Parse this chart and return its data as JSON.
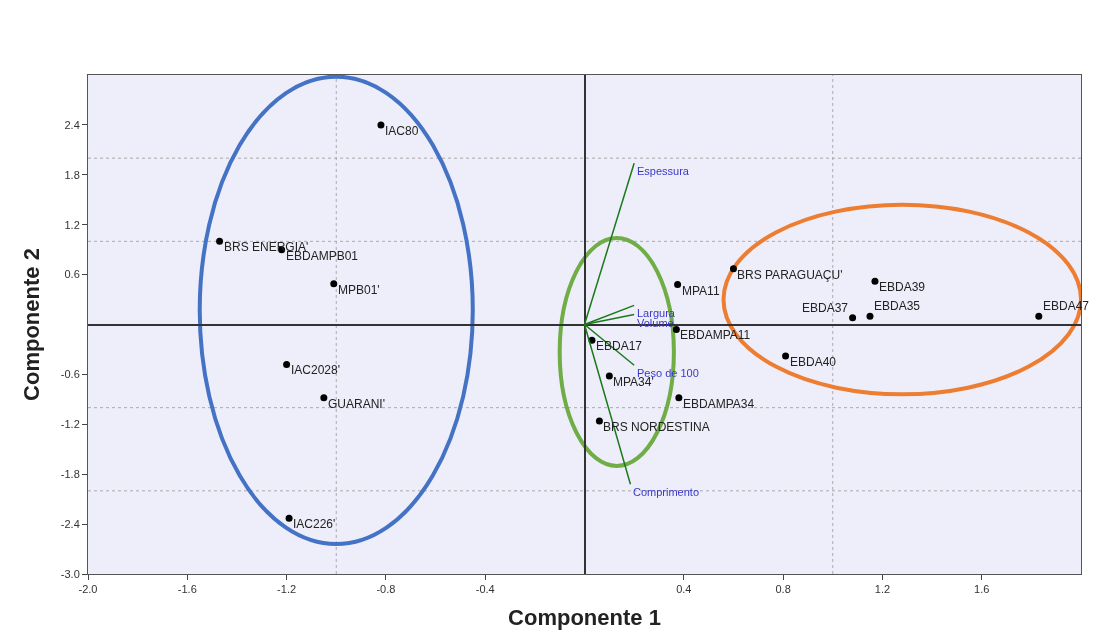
{
  "chart_data": {
    "type": "scatter",
    "xlabel": "Componente 1",
    "ylabel": "Componente 2",
    "xlim": [
      -2.0,
      2.0
    ],
    "xticks": [
      {
        "value": -2.0,
        "label": "-2.0"
      },
      -1.6,
      -1.2,
      -0.8,
      -0.4,
      0.4,
      0.8,
      1.2,
      1.6
    ],
    "ylim": [
      -3.0,
      3.0
    ],
    "yticks": [
      {
        "value": -3.0,
        "label": "-3.0"
      },
      -2.4,
      -1.8,
      -1.2,
      -0.6,
      0.6,
      1.2,
      1.8,
      2.4
    ],
    "grid": false,
    "legend": false,
    "ref_lines": [
      {
        "axis": "x",
        "value": -1,
        "color": "#aaaaaa",
        "line_style": "dotted"
      },
      {
        "axis": "x",
        "value": 1,
        "color": "#aaaaaa",
        "line_style": "dotted"
      },
      {
        "axis": "y",
        "value": -2,
        "color": "#aaaaaa",
        "line_style": "dotted"
      },
      {
        "axis": "y",
        "value": -1,
        "color": "#aaaaaa",
        "line_style": "dotted"
      },
      {
        "axis": "y",
        "value": 1,
        "color": "#aaaaaa",
        "line_style": "dotted"
      },
      {
        "axis": "y",
        "value": 2,
        "color": "#aaaaaa",
        "line_style": "dotted"
      }
    ],
    "series": [
      {
        "color": "#000000",
        "x": [
          -0.82,
          -1.47,
          -1.22,
          -1.01,
          -1.2,
          -1.05,
          -1.19,
          0.03,
          0.1,
          0.06,
          0.375,
          0.37,
          0.38,
          0.6,
          1.17,
          1.08,
          1.15,
          0.81,
          1.83
        ],
        "values": [
          2.4,
          1.0,
          0.9,
          0.49,
          -0.48,
          -0.88,
          -2.33,
          -0.19,
          -0.62,
          -1.16,
          0.48,
          -0.06,
          -0.88,
          0.67,
          0.52,
          0.08,
          0.1,
          -0.38,
          0.1
        ]
      },
      {
        "type": "line",
        "name": "Espessura",
        "color": "#1a7a1a",
        "x": [
          0,
          0.2
        ],
        "values": [
          0,
          1.94
        ]
      },
      {
        "type": "line",
        "name": "Largura",
        "color": "#1a7a1a",
        "x": [
          0,
          0.2
        ],
        "values": [
          0,
          0.23
        ]
      },
      {
        "type": "line",
        "name": "Volume",
        "color": "#1a7a1a",
        "x": [
          0,
          0.2
        ],
        "values": [
          0,
          0.12
        ]
      },
      {
        "type": "line",
        "name": "Peso de 100",
        "color": "#1a7a1a",
        "x": [
          0,
          0.2
        ],
        "values": [
          0,
          -0.49
        ]
      },
      {
        "type": "line",
        "name": "Comprimento",
        "color": "#1a7a1a",
        "x": [
          0,
          0.185
        ],
        "values": [
          0,
          -1.92
        ]
      }
    ],
    "annotations": [
      {
        "text": "IAC80",
        "x": -0.82,
        "y": 2.4
      },
      {
        "text": "BRS ENERGIA'",
        "x": -1.47,
        "y": 1.0
      },
      {
        "text": "EBDAMPB01",
        "x": -1.22,
        "y": 0.9
      },
      {
        "text": "MPB01'",
        "x": -1.01,
        "y": 0.49
      },
      {
        "text": "IAC2028'",
        "x": -1.2,
        "y": -0.48
      },
      {
        "text": "GUARANI'",
        "x": -1.05,
        "y": -0.88
      },
      {
        "text": "IAC226'",
        "x": -1.19,
        "y": -2.33
      },
      {
        "text": "EBDA17",
        "x": 0.03,
        "y": -0.19
      },
      {
        "text": "MPA34'",
        "x": 0.1,
        "y": -0.62
      },
      {
        "text": "BRS NORDESTINA",
        "x": 0.06,
        "y": -1.16
      },
      {
        "text": "MPA11",
        "x": 0.375,
        "y": 0.48
      },
      {
        "text": "EBDAMPA11",
        "x": 0.37,
        "y": -0.06
      },
      {
        "text": "EBDAMPA34",
        "x": 0.38,
        "y": -0.88
      },
      {
        "text": "BRS PARAGUAÇU'",
        "x": 0.6,
        "y": 0.67
      },
      {
        "text": "EBDA39",
        "x": 1.17,
        "y": 0.52
      },
      {
        "text": "EBDA37",
        "x": 1.08,
        "y": 0.08
      },
      {
        "text": "EBDA35",
        "x": 1.15,
        "y": 0.1
      },
      {
        "text": "EBDA40",
        "x": 0.81,
        "y": -0.38
      },
      {
        "text": "EBDA47",
        "x": 1.83,
        "y": 0.1
      }
    ]
  }
}
